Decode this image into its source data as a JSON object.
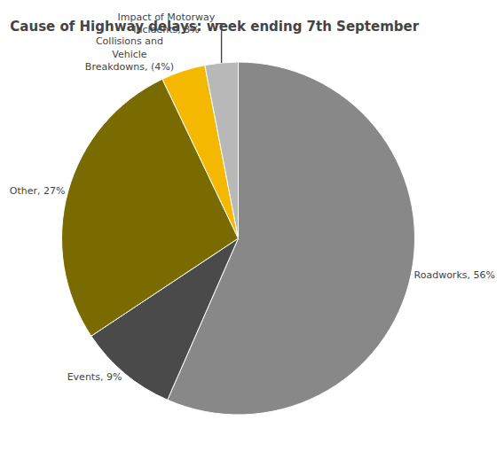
{
  "chart_data": {
    "type": "pie",
    "title": "Cause of Highway delays: week ending 7th September",
    "values": [
      56,
      9,
      27,
      4,
      3
    ],
    "value_labels": [
      "Roadworks, 56%",
      "Events, 9%",
      "Other, 27%",
      "Collisions and\nVehicle\nBreakdowns, (4%)",
      "Impact of Motorway\nIncidents, 3%"
    ],
    "colors": [
      "#888888",
      "#4a4a4a",
      "#7a6b00",
      "#f5b800",
      "#b8b8b8"
    ],
    "data_labels": true,
    "legend": false
  }
}
